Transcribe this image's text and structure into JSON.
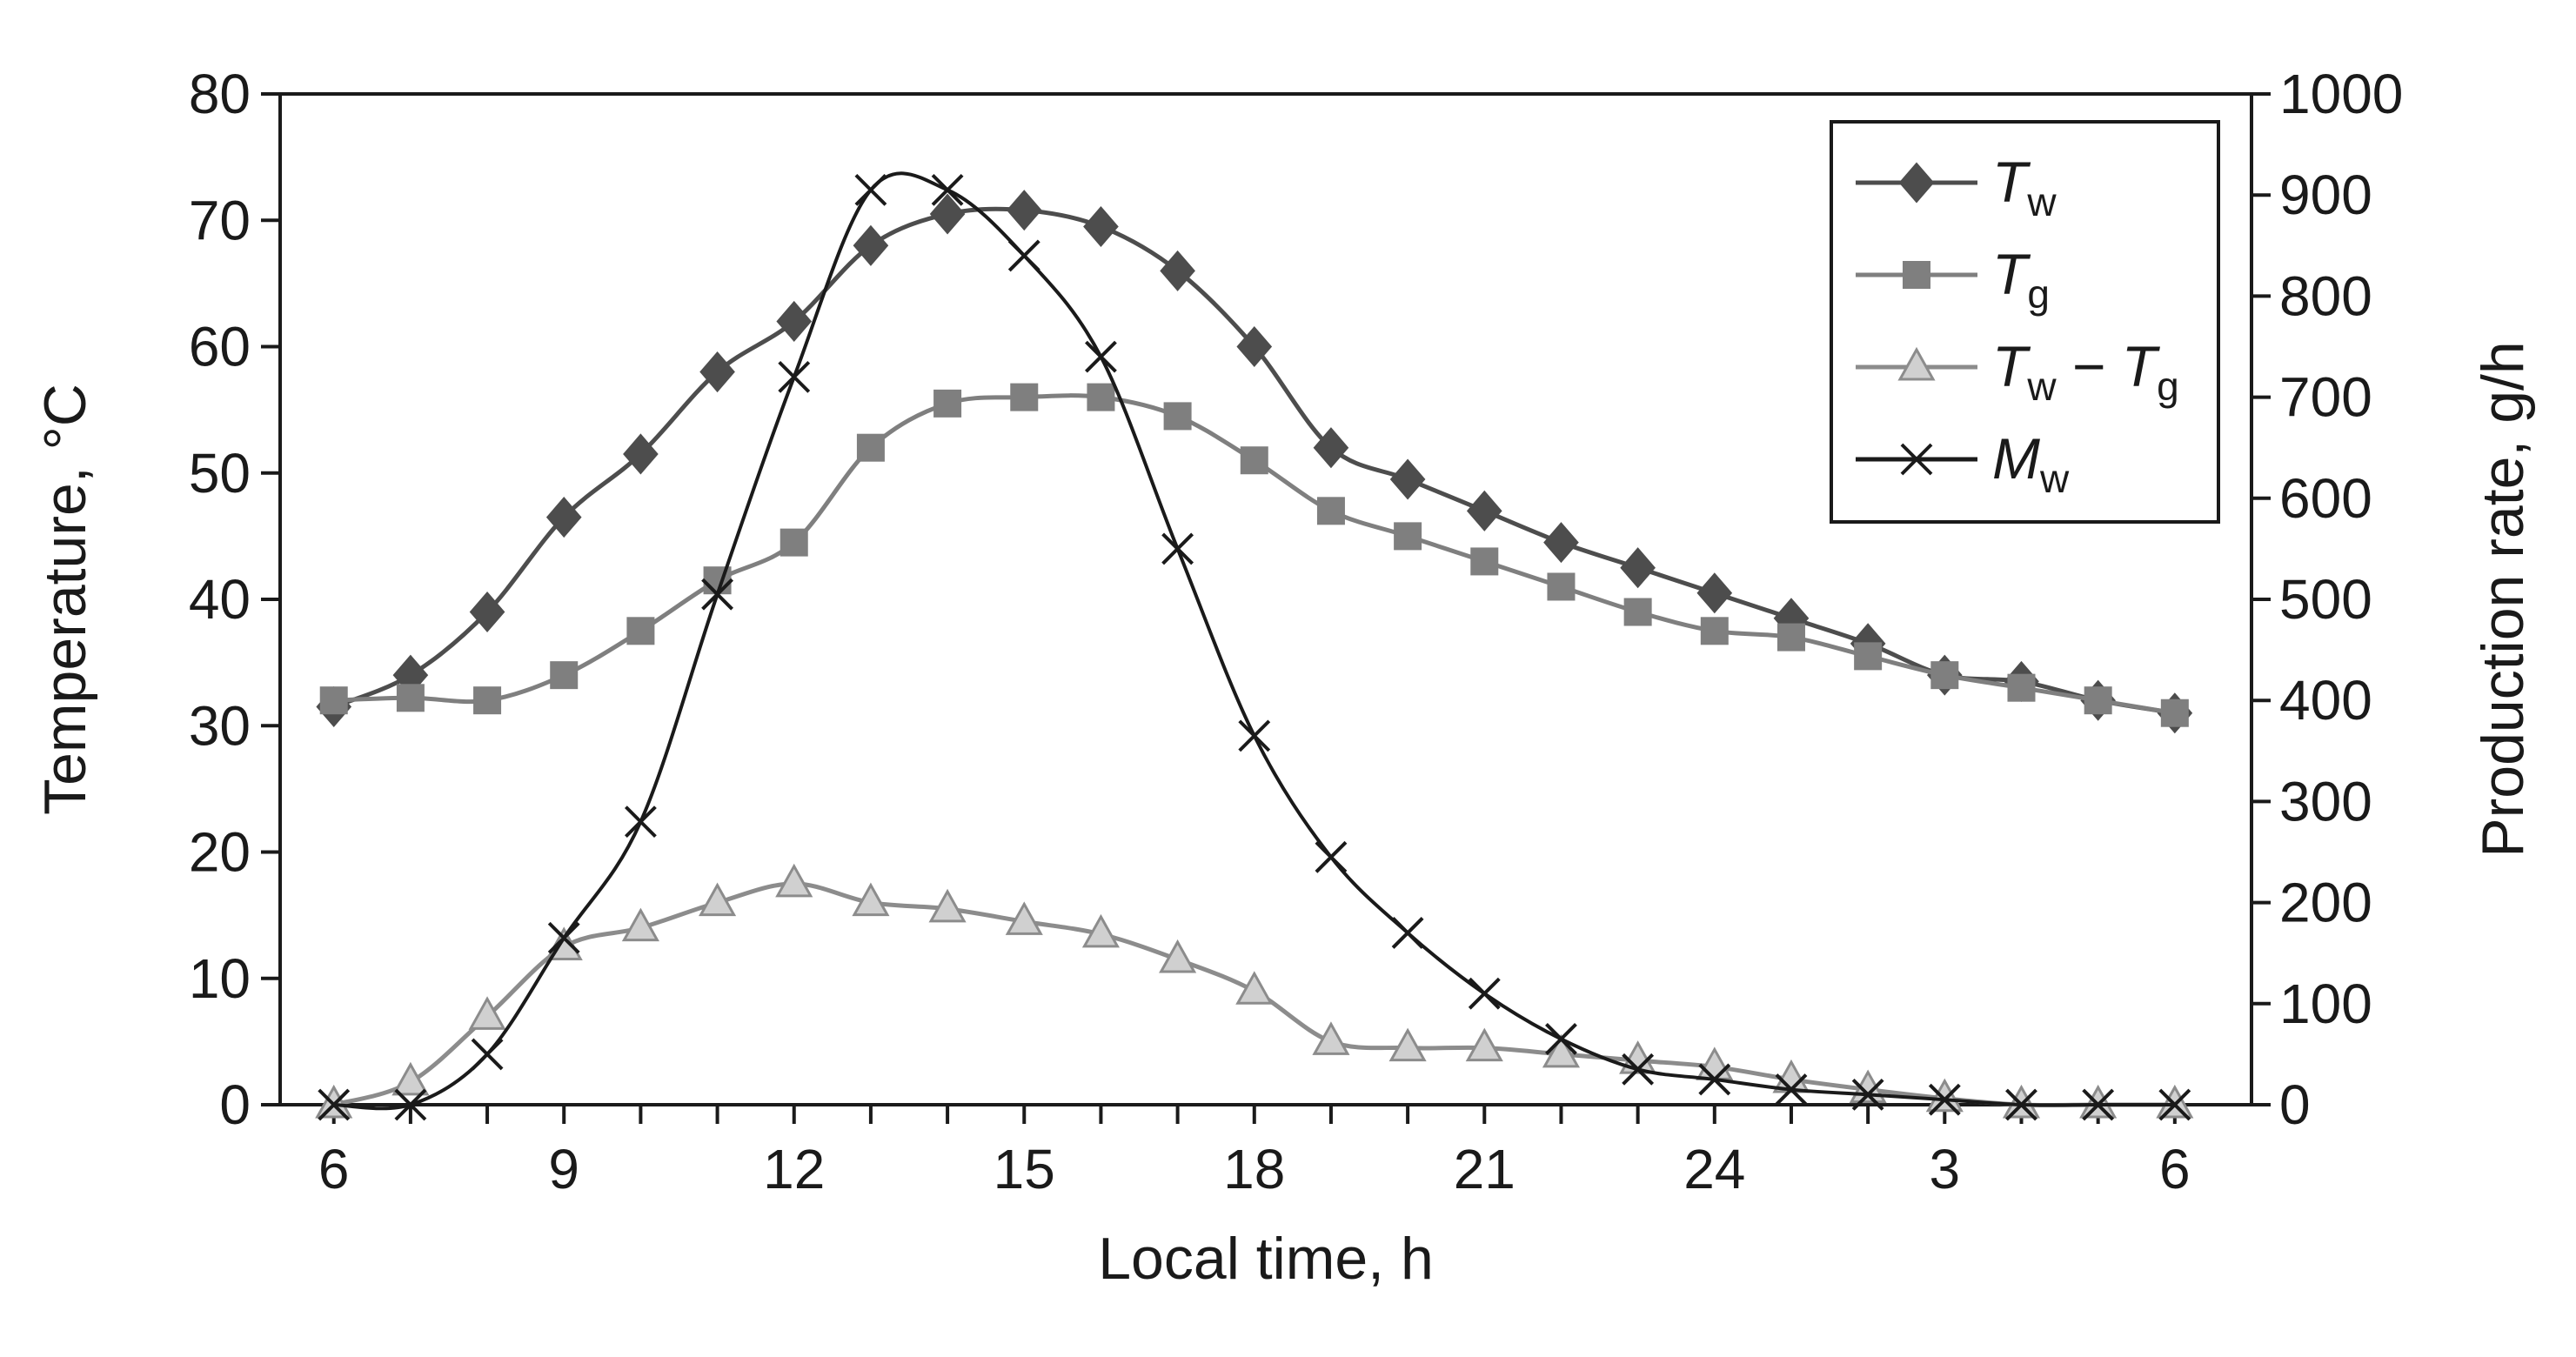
{
  "chart_data": {
    "type": "line",
    "title": "",
    "xlabel": "Local time, h",
    "ylabel_left": "Temperature, °C",
    "ylabel_right": "Production rate, g/h",
    "x_ticks": [
      "6",
      "9",
      "12",
      "15",
      "18",
      "21",
      "24",
      "3",
      "6"
    ],
    "x_tick_positions": [
      6,
      9,
      12,
      15,
      18,
      21,
      24,
      27,
      30
    ],
    "xlim": [
      5.3,
      31
    ],
    "ylim_left": [
      0,
      80
    ],
    "ylim_right": [
      0,
      1000
    ],
    "y_ticks_left": [
      0,
      10,
      20,
      30,
      40,
      50,
      60,
      70,
      80
    ],
    "y_ticks_right": [
      0,
      100,
      200,
      300,
      400,
      500,
      600,
      700,
      800,
      900,
      1000
    ],
    "x": [
      6,
      7,
      8,
      9,
      10,
      11,
      12,
      13,
      14,
      15,
      16,
      17,
      18,
      19,
      20,
      21,
      22,
      23,
      24,
      25,
      26,
      27,
      28,
      29,
      30
    ],
    "series": [
      {
        "name": "Tw",
        "label_main": "T",
        "label_sub": "w",
        "axis": "left",
        "marker": "diamond",
        "color": "#4d4d4d",
        "values": [
          31.5,
          34,
          39,
          46.5,
          51.5,
          58,
          62,
          68,
          70.5,
          70.8,
          69.5,
          66,
          60,
          52,
          49.5,
          47,
          44.5,
          42.5,
          40.5,
          38.5,
          36.5,
          34,
          33.5,
          32,
          31
        ]
      },
      {
        "name": "Tg",
        "label_main": "T",
        "label_sub": "g",
        "axis": "left",
        "marker": "square",
        "color": "#7f7f7f",
        "values": [
          32,
          32.2,
          32,
          34,
          37.5,
          41.5,
          44.5,
          52,
          55.5,
          56,
          56,
          54.5,
          51,
          47,
          45,
          43,
          41,
          39,
          37.5,
          37,
          35.5,
          34,
          33,
          32,
          31
        ]
      },
      {
        "name": "Tw − Tg",
        "label_main": "T",
        "label_sub": "w",
        "label_op": " − ",
        "label_main2": "T",
        "label_sub2": "g",
        "axis": "left",
        "marker": "triangle",
        "color": "#8c8c8c",
        "fill": "#d0d0d0",
        "values": [
          0,
          1.8,
          7,
          12.5,
          14,
          16,
          17.5,
          16,
          15.5,
          14.5,
          13.5,
          11.5,
          9,
          5,
          4.5,
          4.5,
          4,
          3.5,
          3,
          2,
          1.2,
          0.5,
          0,
          0,
          0
        ]
      },
      {
        "name": "Mw",
        "label_main": "M",
        "label_sub": "w",
        "axis": "right",
        "marker": "x",
        "color": "#1a1a1a",
        "values": [
          0,
          0,
          50,
          165,
          280,
          505,
          720,
          905,
          905,
          840,
          740,
          550,
          365,
          245,
          170,
          110,
          65,
          35,
          25,
          15,
          10,
          5,
          0,
          0,
          0
        ]
      }
    ],
    "legend_position": "top-right"
  }
}
